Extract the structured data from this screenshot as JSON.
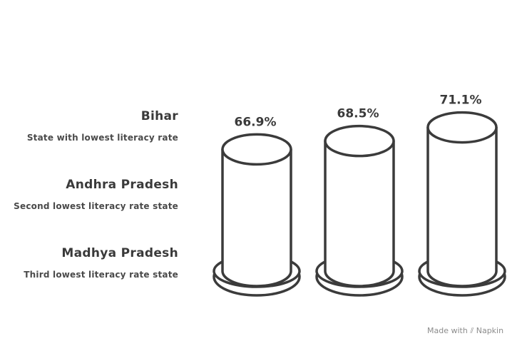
{
  "chart_data": {
    "type": "bar",
    "categories": [
      "Bihar",
      "Andhra Pradesh",
      "Madhya Pradesh"
    ],
    "values": [
      66.9,
      68.5,
      71.1
    ],
    "value_labels": [
      "66.9%",
      "68.5%",
      "71.1%"
    ],
    "descriptions": [
      "State with lowest literacy rate",
      "Second lowest literacy rate state",
      "Third lowest literacy rate state"
    ],
    "title": "",
    "xlabel": "",
    "ylabel": ""
  },
  "footer": {
    "made_with": "Made with",
    "brand": "Napkin",
    "brand_icon": "napkin-logo-icon"
  },
  "colors": {
    "stroke": "#3b3b3b",
    "fill": "#ffffff",
    "text": "#3a3a3a"
  }
}
